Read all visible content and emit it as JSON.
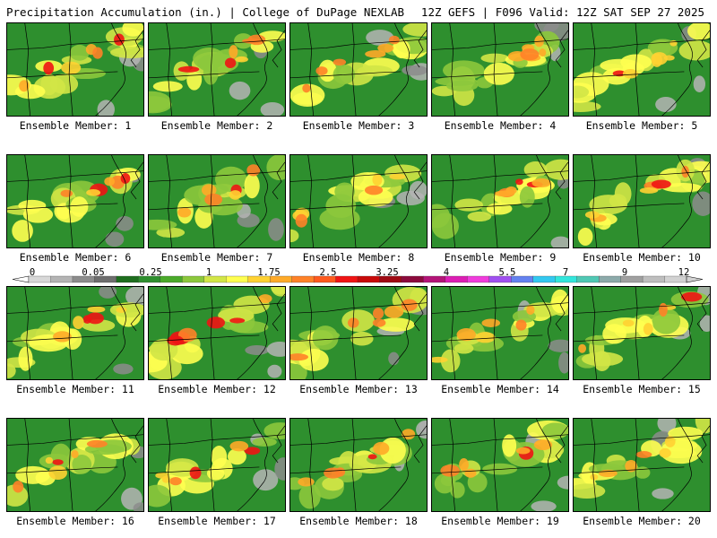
{
  "header": {
    "title_left": "Precipitation Accumulation (in.) | College of DuPage NEXLAB",
    "title_right": "12Z GEFS | F096 Valid: 12Z SAT SEP 27 2025"
  },
  "panels": [
    {
      "label": "Ensemble Member: 1"
    },
    {
      "label": "Ensemble Member: 2"
    },
    {
      "label": "Ensemble Member: 3"
    },
    {
      "label": "Ensemble Member: 4"
    },
    {
      "label": "Ensemble Member: 5"
    },
    {
      "label": "Ensemble Member: 6"
    },
    {
      "label": "Ensemble Member: 7"
    },
    {
      "label": "Ensemble Member: 8"
    },
    {
      "label": "Ensemble Member: 9"
    },
    {
      "label": "Ensemble Member: 10"
    },
    {
      "label": "Ensemble Member: 11"
    },
    {
      "label": "Ensemble Member: 12"
    },
    {
      "label": "Ensemble Member: 13"
    },
    {
      "label": "Ensemble Member: 14"
    },
    {
      "label": "Ensemble Member: 15"
    },
    {
      "label": "Ensemble Member: 16"
    },
    {
      "label": "Ensemble Member: 17"
    },
    {
      "label": "Ensemble Member: 18"
    },
    {
      "label": "Ensemble Member: 19"
    },
    {
      "label": "Ensemble Member: 20"
    }
  ],
  "colorbar": {
    "tick_labels": [
      "0",
      "0.05",
      "0.25",
      "1",
      "1.75",
      "2.5",
      "3.25",
      "4",
      "5.5",
      "7",
      "9",
      "12"
    ],
    "colors": [
      "#d8d8d8",
      "#b4b4b4",
      "#8c8c8c",
      "#6e6e6e",
      "#1e6e1e",
      "#2e8f2e",
      "#4aaa2a",
      "#8cc83c",
      "#d2e646",
      "#ffff50",
      "#ffd232",
      "#ffaa28",
      "#ff8228",
      "#ff5a1e",
      "#f01414",
      "#c80a0a",
      "#a00a14",
      "#8c0a3c",
      "#b41478",
      "#dc1eb4",
      "#f03cdc",
      "#a050f0",
      "#6482f0",
      "#32c8f0",
      "#32e6dc",
      "#50c8b4",
      "#8caaaa",
      "#a0a0a0",
      "#bebebe",
      "#d2d2d2"
    ]
  }
}
